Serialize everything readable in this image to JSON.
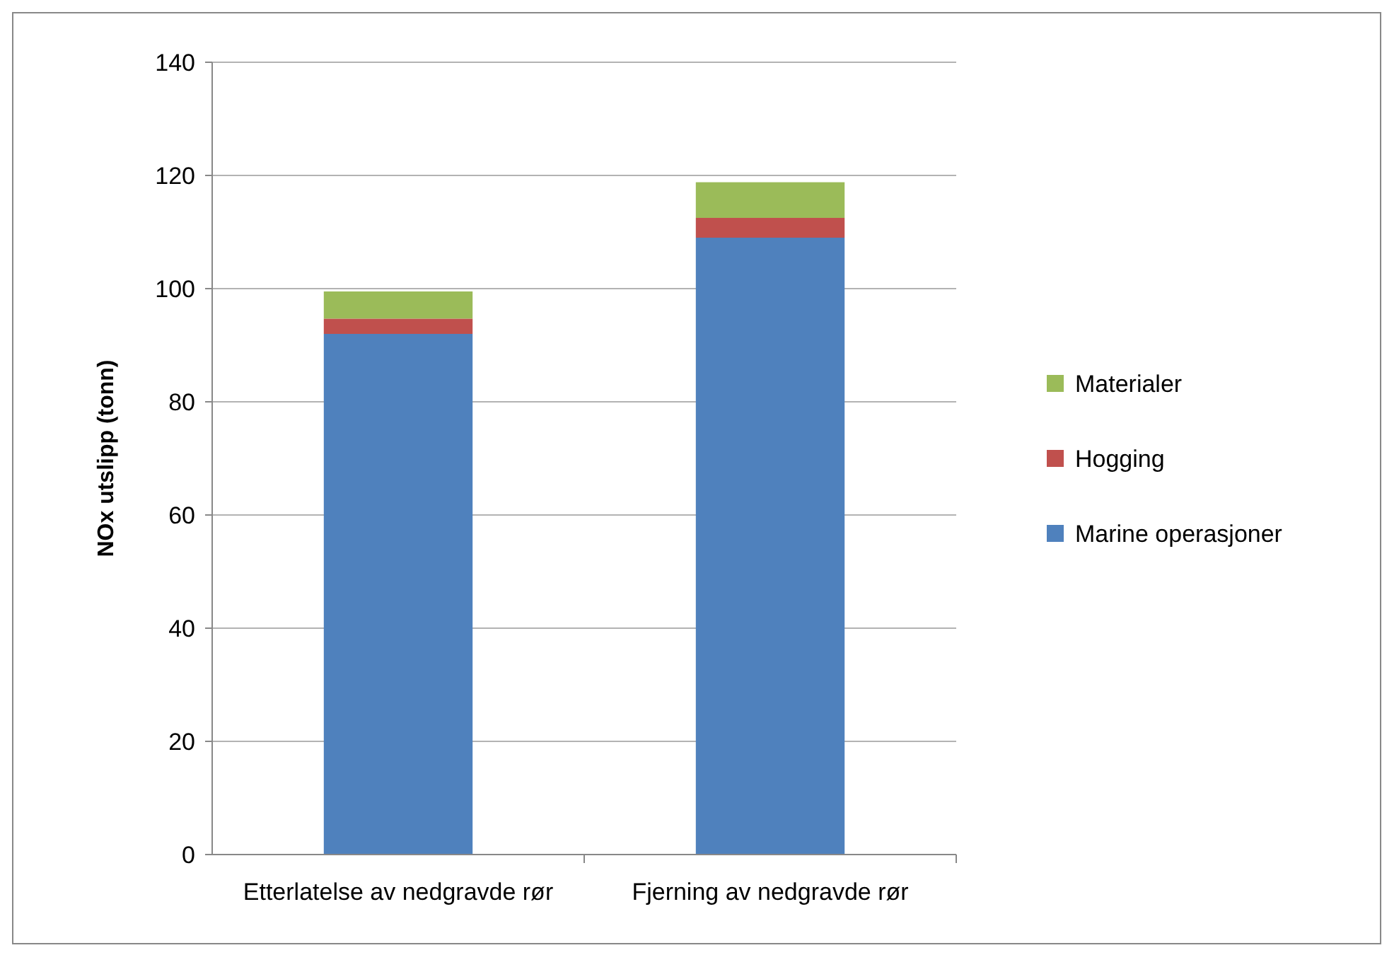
{
  "chart_data": {
    "type": "bar",
    "stacked": true,
    "ylabel": "NOx utslipp (tonn)",
    "categories": [
      "Etterlatelse av nedgravde rør",
      "Fjerning av nedgravde rør"
    ],
    "series": [
      {
        "name": "Marine operasjoner",
        "color": "#4f81bd",
        "values": [
          92,
          109
        ]
      },
      {
        "name": "Hogging",
        "color": "#c0504d",
        "values": [
          2.7,
          3.5
        ]
      },
      {
        "name": "Materialer",
        "color": "#9bbb59",
        "values": [
          4.8,
          6.3
        ]
      }
    ],
    "ylim": [
      0,
      140
    ],
    "yticks": [
      0,
      20,
      40,
      60,
      80,
      100,
      120,
      140
    ],
    "grid": "y",
    "legend": "right"
  }
}
